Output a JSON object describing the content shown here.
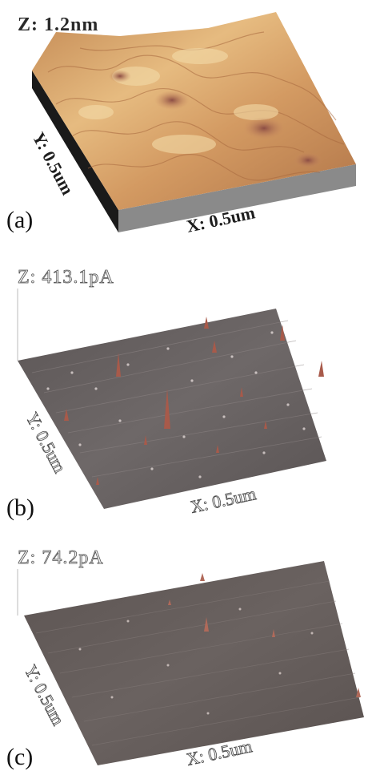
{
  "panels": [
    {
      "id": "a",
      "label": "(a)",
      "z_scale": "Z: 1.2nm",
      "y_scale": "Y: 0.5um",
      "x_scale": "X: 0.5um",
      "surface": "topography",
      "colors": {
        "top": "#d9a96a",
        "dark": "#7a4b3a",
        "light": "#f1d6a2",
        "pit": "#a8675a"
      }
    },
    {
      "id": "b",
      "label": "(b)",
      "z_scale": "Z: 413.1pA",
      "y_scale": "Y: 0.5um",
      "x_scale": "X: 0.5um",
      "surface": "current",
      "colors": {
        "top": "#686262",
        "dark": "#4a4545",
        "light": "#8c8585",
        "peak": "#b05a4a"
      }
    },
    {
      "id": "c",
      "label": "(c)",
      "z_scale": "Z: 74.2pA",
      "y_scale": "Y: 0.5um",
      "x_scale": "X: 0.5um",
      "surface": "current",
      "colors": {
        "top": "#665e5c",
        "dark": "#4d4644",
        "light": "#857c7a",
        "peak": "#b06a5a"
      }
    }
  ]
}
